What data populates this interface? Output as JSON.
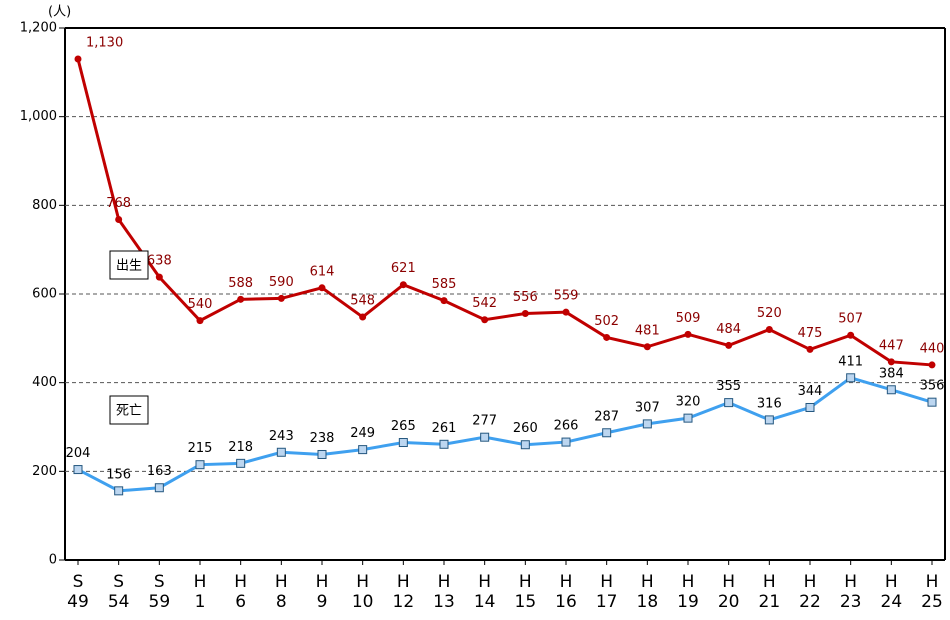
{
  "chart_data": {
    "type": "line",
    "y_unit": "(人)",
    "categories": [
      "S\n49",
      "S\n54",
      "S\n59",
      "H\n1",
      "H\n6",
      "H\n8",
      "H\n9",
      "H\n10",
      "H\n12",
      "H\n13",
      "H\n14",
      "H\n15",
      "H\n16",
      "H\n17",
      "H\n18",
      "H\n19",
      "H\n20",
      "H\n21",
      "H\n22",
      "H\n23",
      "H\n24",
      "H\n25"
    ],
    "series": [
      {
        "name": "出生",
        "color": "#c00000",
        "label_color": "#8b0000",
        "values": [
          1130,
          768,
          638,
          540,
          588,
          590,
          614,
          548,
          621,
          585,
          542,
          556,
          559,
          502,
          481,
          509,
          484,
          520,
          475,
          507,
          447,
          440
        ],
        "value_labels": [
          "1,130",
          "768",
          "638",
          "540",
          "588",
          "590",
          "614",
          "548",
          "621",
          "585",
          "542",
          "556",
          "559",
          "502",
          "481",
          "509",
          "484",
          "520",
          "475",
          "507",
          "447",
          "440"
        ]
      },
      {
        "name": "死亡",
        "color": "#3fa0ef",
        "label_color": "#000000",
        "values": [
          204,
          156,
          163,
          215,
          218,
          243,
          238,
          249,
          265,
          261,
          277,
          260,
          266,
          287,
          307,
          320,
          355,
          316,
          344,
          411,
          384,
          356
        ]
      }
    ],
    "ylim": [
      0,
      1200
    ],
    "yticks": [
      0,
      200,
      400,
      600,
      800,
      {
        "value": 1000,
        "label": "1,000"
      },
      {
        "value": 1200,
        "label": "1,200"
      }
    ],
    "grid": true
  }
}
